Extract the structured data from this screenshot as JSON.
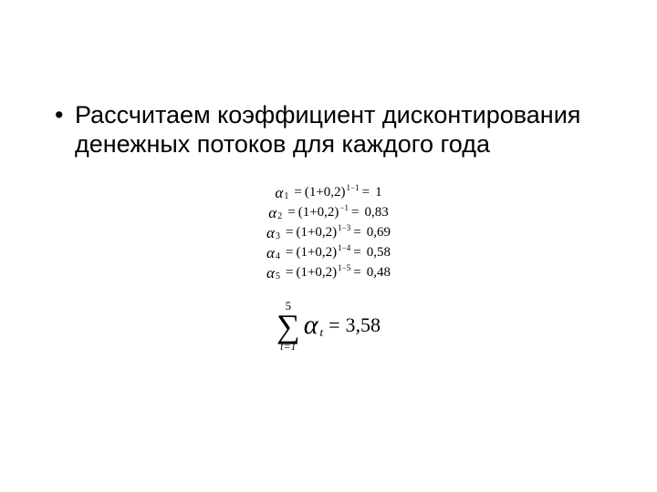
{
  "slide": {
    "background_color": "#ffffff",
    "text_color": "#000000",
    "bullet_marker": "•",
    "bullet_text": "Рассчитаем коэффициент дисконтирования денежных потоков для каждого года",
    "body_font_family": "Arial",
    "body_font_size_pt": 20,
    "formula_font_family": "Times New Roman"
  },
  "formulas": {
    "discount_rate": 0.2,
    "alpha_symbol": "α",
    "equals": "=",
    "base_expr": "(1+0,2)",
    "lines": [
      {
        "subscript": "1",
        "exponent": "1−1",
        "value": "1"
      },
      {
        "subscript": "2",
        "exponent": "−1",
        "value": "0,83"
      },
      {
        "subscript": "3",
        "exponent": "1−3",
        "value": "0,69"
      },
      {
        "subscript": "4",
        "exponent": "1−4",
        "value": "0,58"
      },
      {
        "subscript": "5",
        "exponent": "1−5",
        "value": "0,48"
      }
    ]
  },
  "sum": {
    "sigma": "∑",
    "upper": "5",
    "lower": "t=1",
    "alpha": "α",
    "sub": "t",
    "equals": "=",
    "value": "3,58"
  }
}
